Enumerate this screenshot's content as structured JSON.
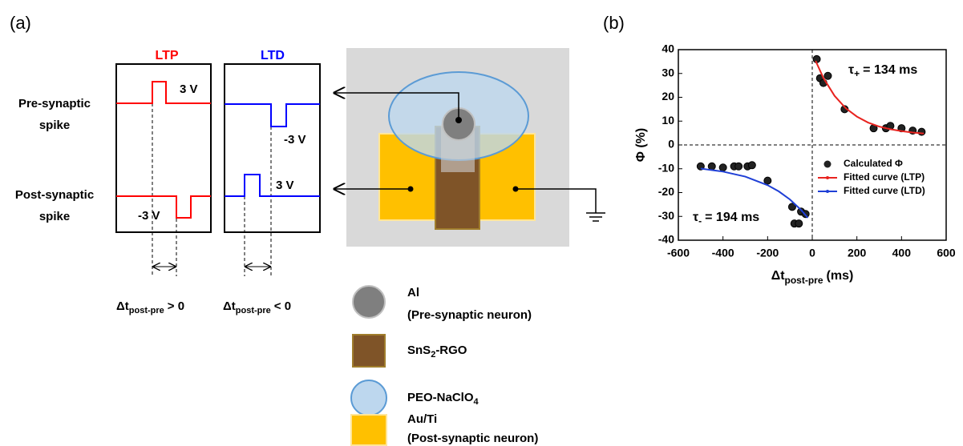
{
  "panel_a": {
    "label": "(a)",
    "ltp": "LTP",
    "ltd": "LTD",
    "pre_label": [
      "Pre-synaptic",
      "spike"
    ],
    "post_label": [
      "Post-synaptic",
      "spike"
    ],
    "ltp_pre_voltage": "3 V",
    "ltp_post_voltage": "-3 V",
    "ltd_pre_voltage": "-3 V",
    "ltd_post_voltage": "3 V",
    "dt_positive": {
      "main": "Δt",
      "sub": "post-pre",
      "rest": "> 0"
    },
    "dt_negative": {
      "main": "Δt",
      "sub": "post-pre",
      "rest": "< 0"
    },
    "legend": [
      {
        "lines": [
          "Al",
          "(Pre-synaptic neuron)"
        ]
      },
      {
        "main": "SnS",
        "sub": "2",
        "rest": "-RGO"
      },
      {
        "main": "PEO-NaClO",
        "sub": "4"
      },
      {
        "lines": [
          "Au/Ti",
          "(Post-synaptic neuron)"
        ]
      }
    ]
  },
  "chart_data": {
    "type": "scatter",
    "panel_label": "(b)",
    "ylabel": "Φ (%)",
    "xlabel": {
      "main": "Δt",
      "sub": "post-pre",
      "rest": "(ms)"
    },
    "xlim": [
      -600,
      600
    ],
    "xticks": [
      -600,
      -400,
      -200,
      0,
      200,
      400,
      600
    ],
    "ylim": [
      -40,
      40
    ],
    "yticks": [
      -40,
      -30,
      -20,
      -10,
      0,
      10,
      20,
      30,
      40
    ],
    "zero_lines": true,
    "series": [
      {
        "name": "Calculated Φ",
        "kind": "scatter",
        "color": "#222222",
        "x": [
          20,
          35,
          50,
          70,
          145,
          275,
          330,
          350,
          400,
          450,
          490,
          -500,
          -450,
          -400,
          -350,
          -330,
          -290,
          -270,
          -200,
          -90,
          -80,
          -60,
          -50,
          -30
        ],
        "values": [
          36,
          28,
          26,
          29,
          15,
          7,
          7,
          8,
          7,
          6,
          5.5,
          -9,
          -9,
          -9.5,
          -9,
          -9,
          -9,
          -8.5,
          -15,
          -26,
          -33,
          -33,
          -28,
          -29
        ]
      },
      {
        "name": "Fitted curve (LTP)",
        "kind": "line",
        "color": "#e8231f",
        "x": [
          15,
          50,
          100,
          150,
          200,
          250,
          300,
          350,
          400,
          450,
          500
        ],
        "values": [
          35.3,
          28.1,
          20.6,
          15.4,
          11.9,
          9.4,
          7.7,
          6.6,
          5.8,
          5.2,
          4.8
        ]
      },
      {
        "name": "Fitted curve (LTD)",
        "kind": "line",
        "color": "#1f3fd6",
        "x": [
          -500,
          -400,
          -300,
          -200,
          -150,
          -100,
          -50,
          -20
        ],
        "values": [
          -9.9,
          -11.2,
          -13.3,
          -16.9,
          -19.5,
          -22.9,
          -27.3,
          -30.6
        ]
      }
    ],
    "annotations": [
      {
        "symbol": "τ",
        "sub": "+",
        "text": "= 134 ms"
      },
      {
        "symbol": "τ",
        "sub": "-",
        "text": "= 194 ms"
      }
    ]
  }
}
